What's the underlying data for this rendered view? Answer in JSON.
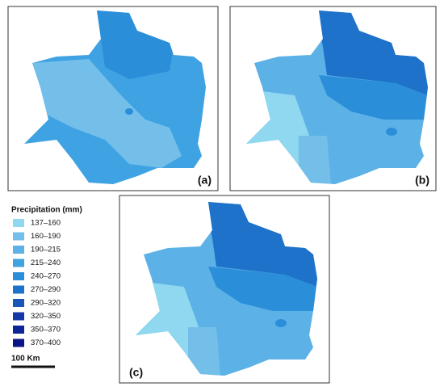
{
  "panels": [
    {
      "label": "(a)"
    },
    {
      "label": "(b)"
    },
    {
      "label": "(c)"
    }
  ],
  "legend": {
    "title": "Precipitation (mm)",
    "items": [
      {
        "label": "137–160",
        "color": "#8fd8ef"
      },
      {
        "label": "160–190",
        "color": "#74bfe9"
      },
      {
        "label": "190–215",
        "color": "#5cb1e6"
      },
      {
        "label": "215–240",
        "color": "#3fa2e3"
      },
      {
        "label": "240–270",
        "color": "#2a8ed9"
      },
      {
        "label": "270–290",
        "color": "#1f72c9"
      },
      {
        "label": "290–320",
        "color": "#1a55b8"
      },
      {
        "label": "320–350",
        "color": "#1538a8"
      },
      {
        "label": "350–370",
        "color": "#0f2496"
      },
      {
        "label": "370–400",
        "color": "#0a1485"
      }
    ]
  },
  "scale_bar": {
    "label": "100 Km"
  }
}
